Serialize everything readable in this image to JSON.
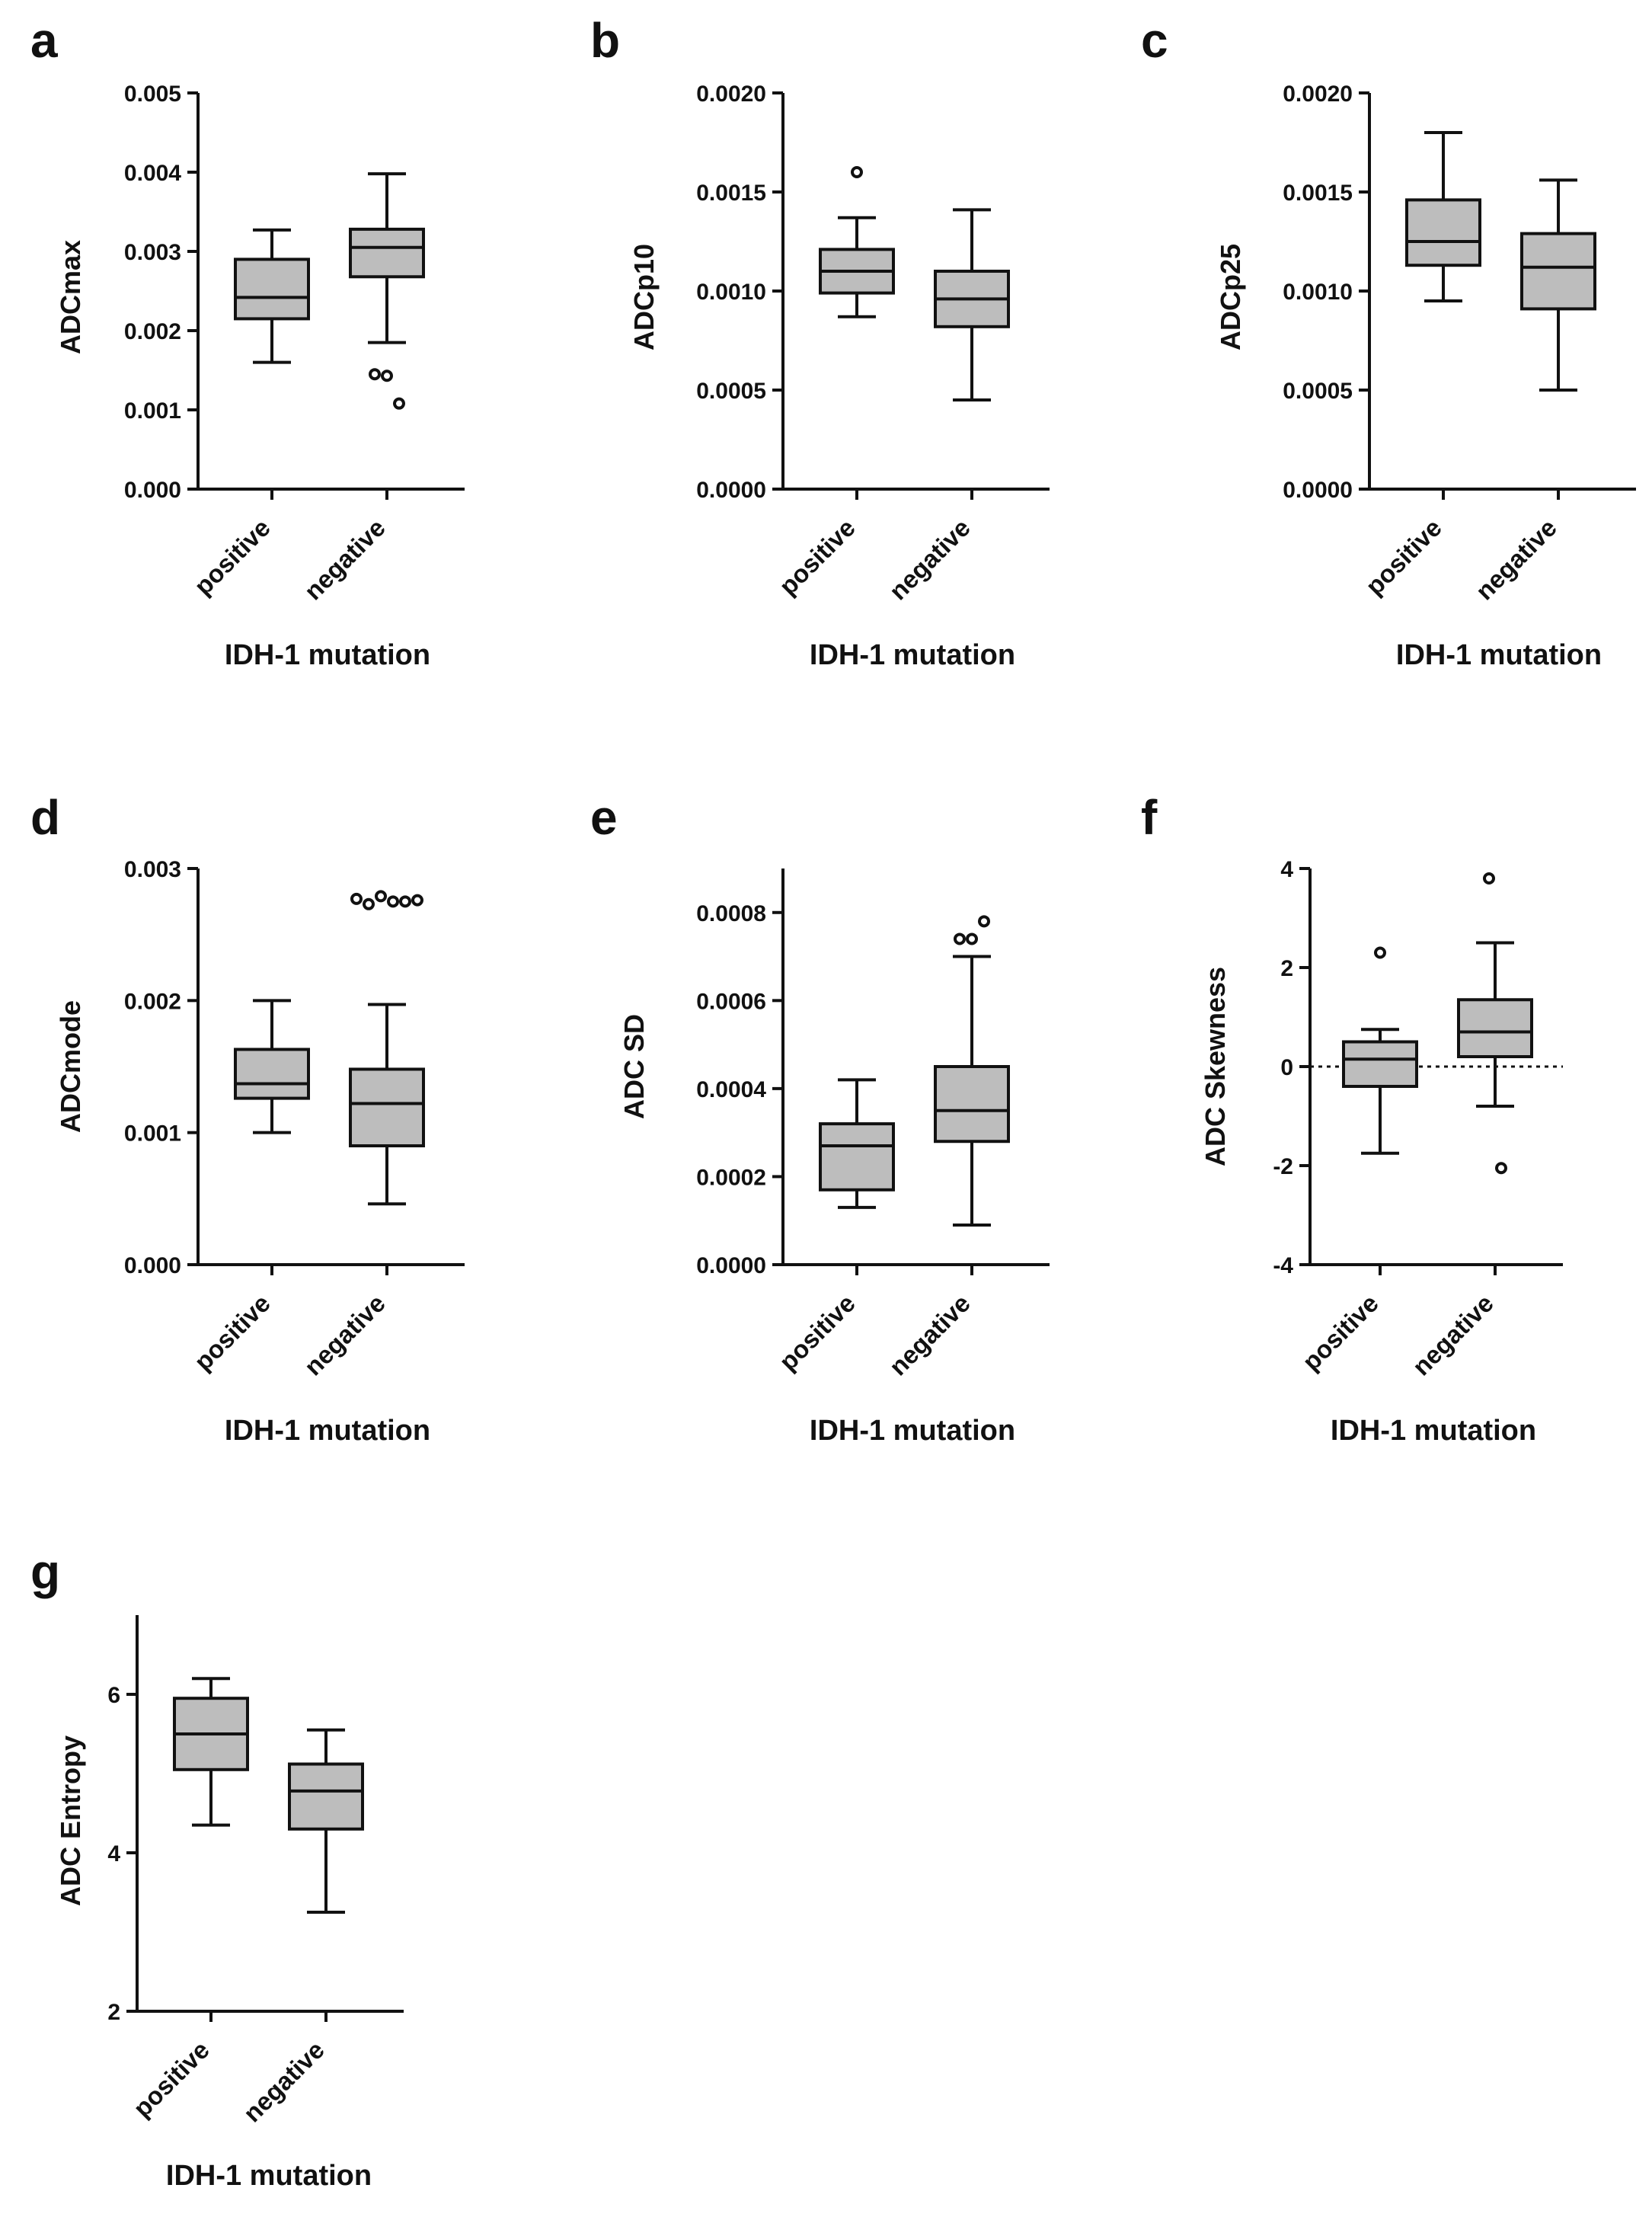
{
  "chart_data": [
    {
      "panel": "a",
      "type": "box",
      "ylabel": "ADCmax",
      "xlabel": "IDH-1 mutation",
      "categories": [
        "positive",
        "negative"
      ],
      "ylim": [
        0,
        0.005
      ],
      "yticks": [
        "0.000",
        "0.001",
        "0.002",
        "0.003",
        "0.004",
        "0.005"
      ],
      "yticks_values": [
        0,
        0.001,
        0.002,
        0.003,
        0.004,
        0.005
      ],
      "boxes": [
        {
          "min": 0.0016,
          "q1": 0.00215,
          "median": 0.00242,
          "q3": 0.0029,
          "max": 0.00327,
          "outliers": []
        },
        {
          "min": 0.00185,
          "q1": 0.00268,
          "median": 0.00305,
          "q3": 0.00328,
          "max": 0.00398,
          "outliers": [
            0.00145,
            0.00143,
            0.00108
          ]
        }
      ]
    },
    {
      "panel": "b",
      "type": "box",
      "ylabel": "ADCp10",
      "xlabel": "IDH-1 mutation",
      "categories": [
        "positive",
        "negative"
      ],
      "ylim": [
        0,
        0.002
      ],
      "yticks": [
        "0.0000",
        "0.0005",
        "0.0010",
        "0.0015",
        "0.0020"
      ],
      "yticks_values": [
        0,
        0.0005,
        0.001,
        0.0015,
        0.002
      ],
      "boxes": [
        {
          "min": 0.00087,
          "q1": 0.00099,
          "median": 0.0011,
          "q3": 0.00121,
          "max": 0.00137,
          "outliers": [
            0.0016
          ]
        },
        {
          "min": 0.00045,
          "q1": 0.00082,
          "median": 0.00096,
          "q3": 0.0011,
          "max": 0.00141,
          "outliers": []
        }
      ]
    },
    {
      "panel": "c",
      "type": "box",
      "ylabel": "ADCp25",
      "xlabel": "IDH-1 mutation",
      "categories": [
        "positive",
        "negative"
      ],
      "ylim": [
        0,
        0.002
      ],
      "yticks": [
        "0.0000",
        "0.0005",
        "0.0010",
        "0.0015",
        "0.0020"
      ],
      "yticks_values": [
        0,
        0.0005,
        0.001,
        0.0015,
        0.002
      ],
      "boxes": [
        {
          "min": 0.00095,
          "q1": 0.00113,
          "median": 0.00125,
          "q3": 0.00146,
          "max": 0.0018,
          "outliers": []
        },
        {
          "min": 0.0005,
          "q1": 0.00091,
          "median": 0.00112,
          "q3": 0.00129,
          "max": 0.00156,
          "outliers": []
        }
      ]
    },
    {
      "panel": "d",
      "type": "box",
      "ylabel": "ADCmode",
      "xlabel": "IDH-1 mutation",
      "categories": [
        "positive",
        "negative"
      ],
      "ylim": [
        0,
        0.003
      ],
      "yticks": [
        "0.000",
        "0.001",
        "0.002",
        "0.003"
      ],
      "yticks_values": [
        0,
        0.001,
        0.002,
        0.003
      ],
      "boxes": [
        {
          "min": 0.001,
          "q1": 0.00126,
          "median": 0.00137,
          "q3": 0.00163,
          "max": 0.002,
          "outliers": []
        },
        {
          "min": 0.00046,
          "q1": 0.0009,
          "median": 0.00122,
          "q3": 0.00148,
          "max": 0.00197,
          "outliers": [
            0.00277,
            0.00273,
            0.00279,
            0.00275,
            0.00275,
            0.00276
          ]
        }
      ]
    },
    {
      "panel": "e",
      "type": "box",
      "ylabel": "ADC SD",
      "xlabel": "IDH-1 mutation",
      "categories": [
        "positive",
        "negative"
      ],
      "ylim": [
        0,
        0.0009
      ],
      "yticks": [
        "0.0000",
        "0.0002",
        "0.0004",
        "0.0006",
        "0.0008"
      ],
      "yticks_values": [
        0,
        0.0002,
        0.0004,
        0.0006,
        0.0008
      ],
      "boxes": [
        {
          "min": 0.00013,
          "q1": 0.00017,
          "median": 0.00027,
          "q3": 0.00032,
          "max": 0.00042,
          "outliers": []
        },
        {
          "min": 9e-05,
          "q1": 0.00028,
          "median": 0.00035,
          "q3": 0.00045,
          "max": 0.0007,
          "outliers": [
            0.00074,
            0.00074,
            0.00078
          ]
        }
      ]
    },
    {
      "panel": "f",
      "type": "box",
      "ylabel": "ADC Skewness",
      "xlabel": "IDH-1 mutation",
      "categories": [
        "positive",
        "negative"
      ],
      "ylim": [
        -4,
        4
      ],
      "yticks": [
        "-4",
        "-2",
        "0",
        "2",
        "4"
      ],
      "yticks_values": [
        -4,
        -2,
        0,
        2,
        4
      ],
      "reference_line": 0,
      "boxes": [
        {
          "min": -1.75,
          "q1": -0.4,
          "median": 0.15,
          "q3": 0.5,
          "max": 0.75,
          "outliers": [
            2.3
          ]
        },
        {
          "min": -0.8,
          "q1": 0.2,
          "median": 0.7,
          "q3": 1.35,
          "max": 2.5,
          "outliers": [
            3.8,
            -2.05
          ]
        }
      ]
    },
    {
      "panel": "g",
      "type": "box",
      "ylabel": "ADC Entropy",
      "xlabel": "IDH-1 mutation",
      "categories": [
        "positive",
        "negative"
      ],
      "ylim": [
        2,
        7
      ],
      "yticks": [
        "2",
        "4",
        "6"
      ],
      "yticks_values": [
        2,
        4,
        6
      ],
      "boxes": [
        {
          "min": 4.35,
          "q1": 5.05,
          "median": 5.5,
          "q3": 5.95,
          "max": 6.2,
          "outliers": []
        },
        {
          "min": 3.25,
          "q1": 4.3,
          "median": 4.78,
          "q3": 5.12,
          "max": 5.55,
          "outliers": []
        }
      ]
    }
  ]
}
